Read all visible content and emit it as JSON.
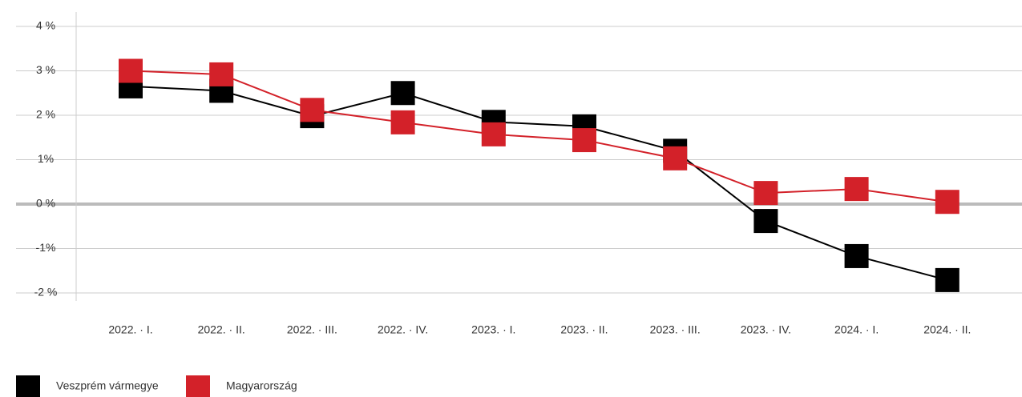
{
  "chart_data": {
    "type": "line",
    "categories": [
      "2022. · I.",
      "2022. · II.",
      "2022. · III.",
      "2022. · IV.",
      "2023. · I.",
      "2023. · II.",
      "2023. · III.",
      "2023. · IV.",
      "2024. · I.",
      "2024. · II."
    ],
    "series": [
      {
        "name": "Veszprém vármegye",
        "color": "#000000",
        "values": [
          2.65,
          2.55,
          1.98,
          2.5,
          1.85,
          1.75,
          1.2,
          -0.38,
          -1.17,
          -1.71
        ]
      },
      {
        "name": "Magyarország",
        "color": "#d32129",
        "values": [
          3.0,
          2.92,
          2.12,
          1.84,
          1.57,
          1.44,
          1.03,
          0.25,
          0.34,
          0.05
        ]
      }
    ],
    "ylim": [
      -2,
      4
    ],
    "yticks": [
      {
        "value": 4,
        "label": "4 %"
      },
      {
        "value": 3,
        "label": "3 %"
      },
      {
        "value": 2,
        "label": "2 %"
      },
      {
        "value": 1,
        "label": "1%"
      },
      {
        "value": 0,
        "label": "0 %"
      },
      {
        "value": -1,
        "label": "-1%"
      },
      {
        "value": -2,
        "label": "-2 %"
      }
    ],
    "grid": true
  }
}
